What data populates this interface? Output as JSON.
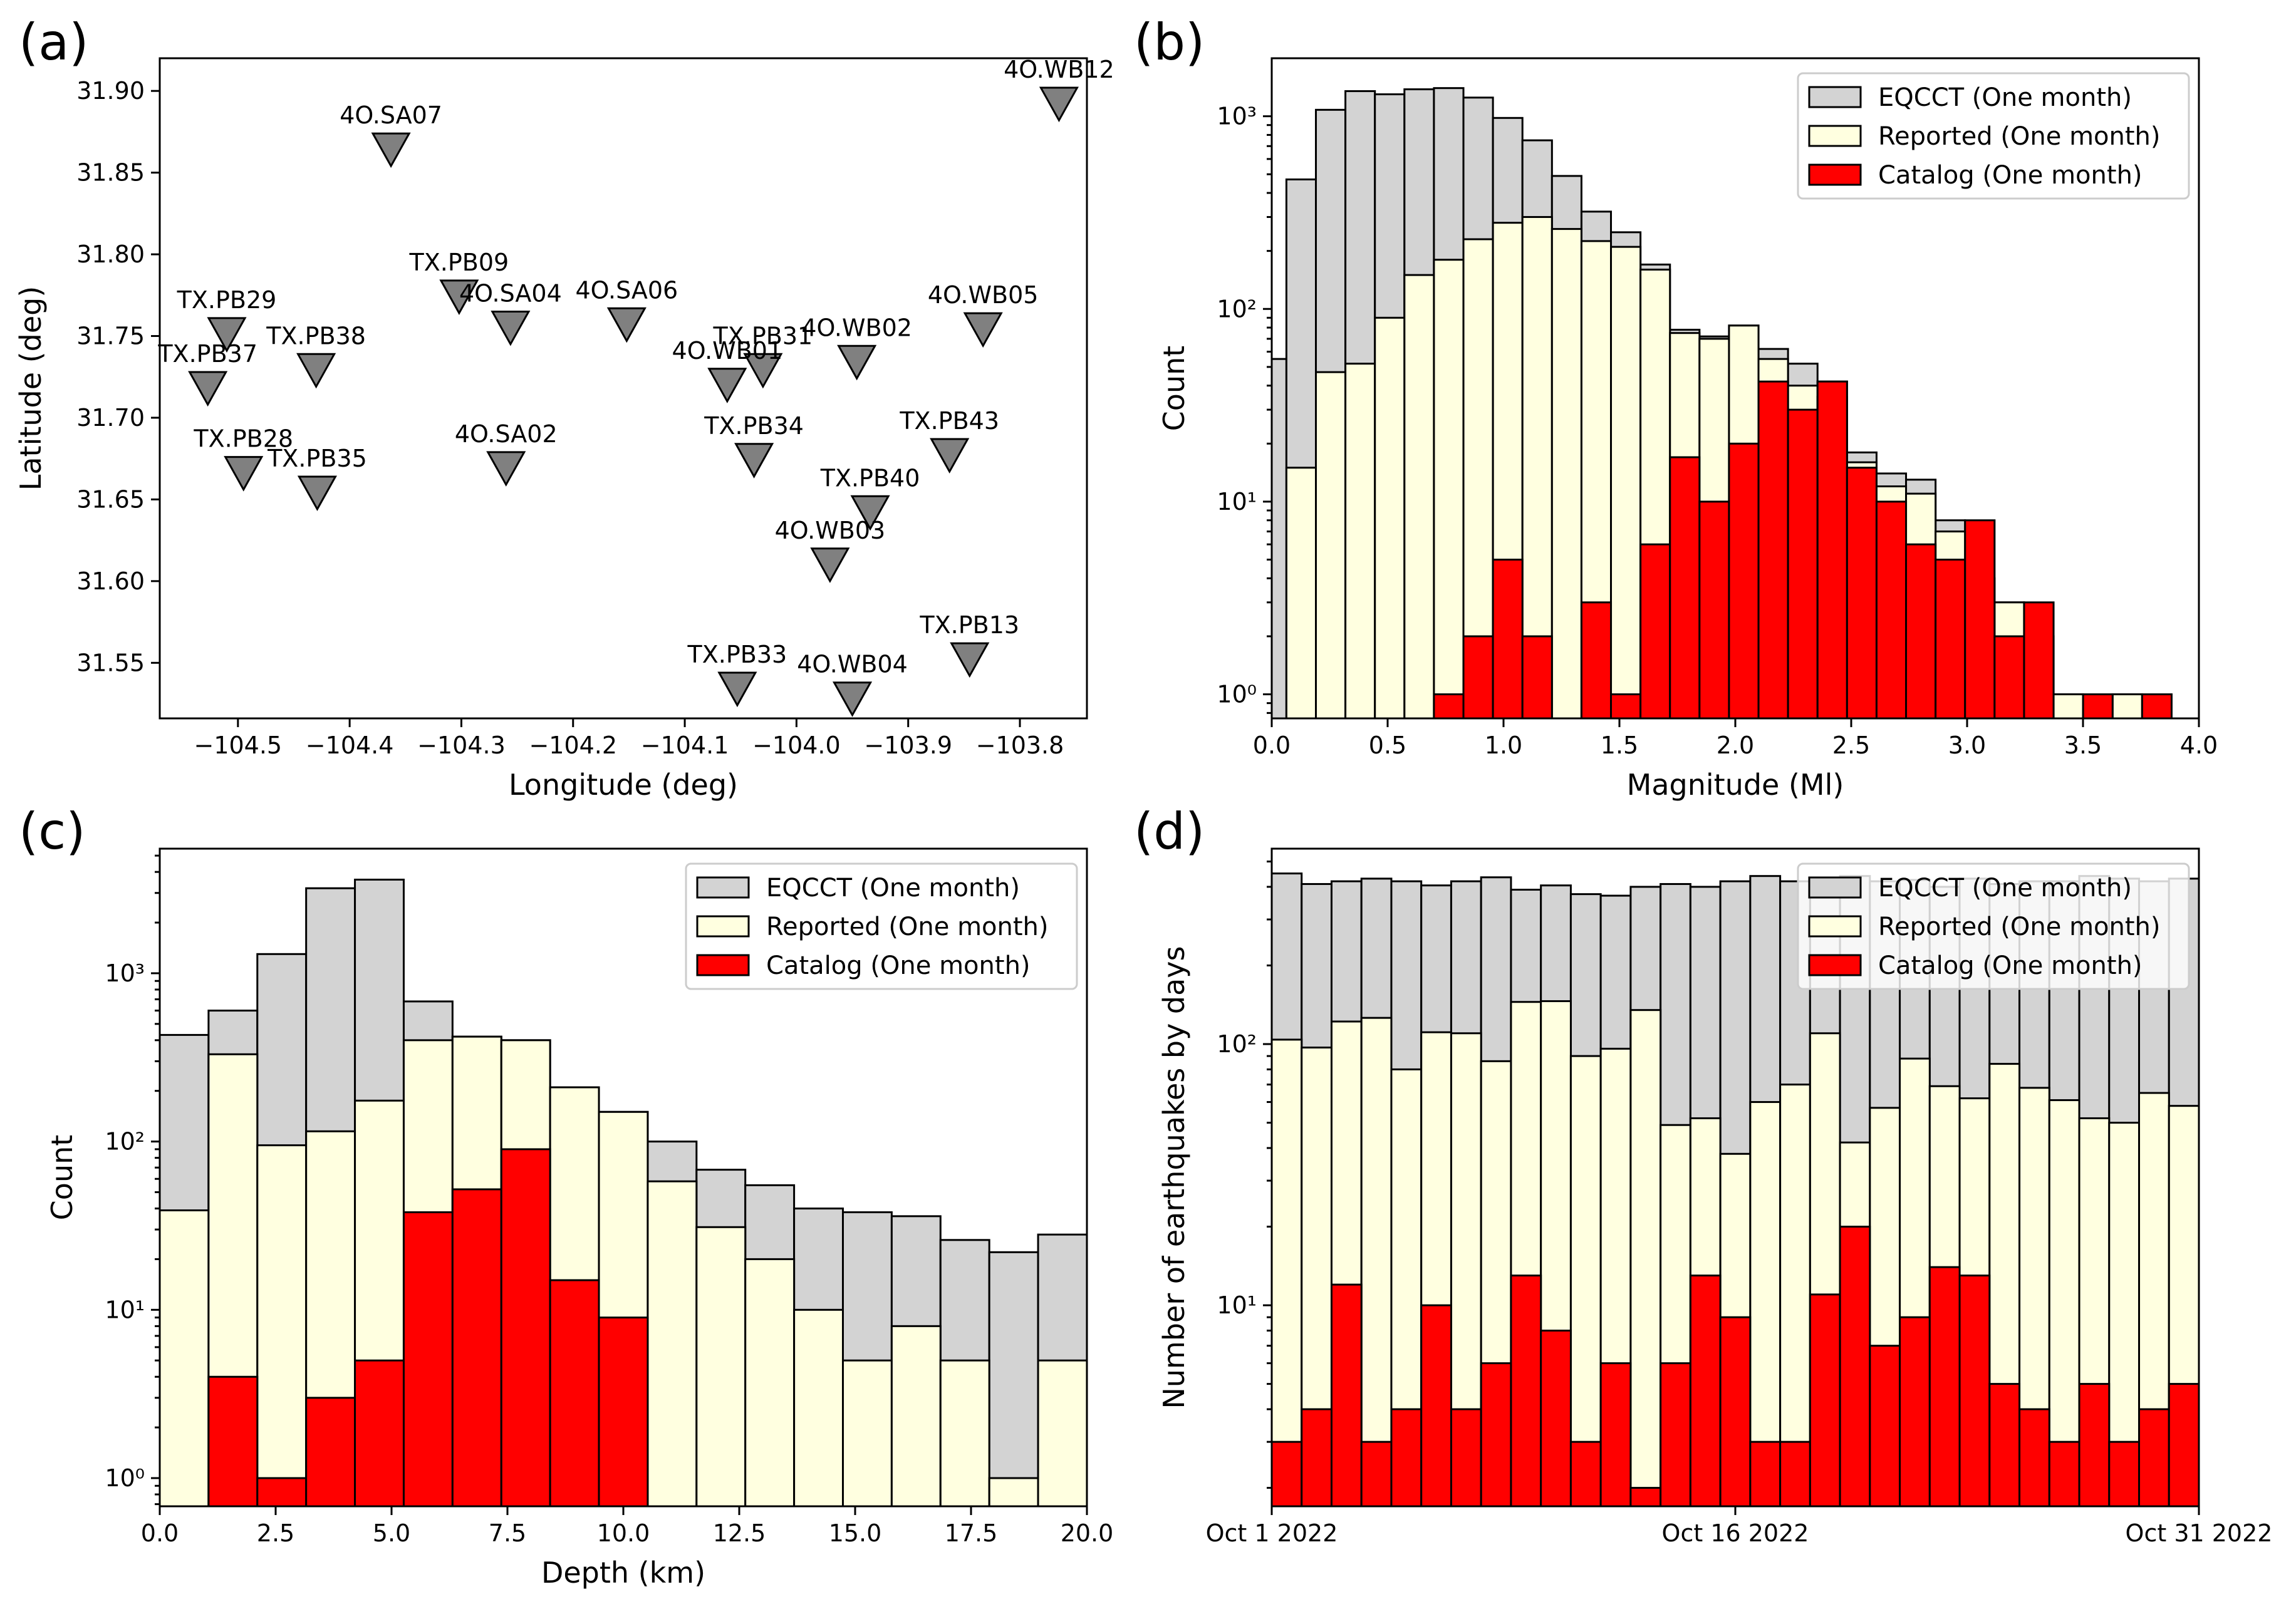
{
  "chart_data": [
    {
      "panel": "(a)",
      "type": "scatter",
      "marker": "inverted-triangle",
      "marker_color": "#808080",
      "xlabel": "Longitude (deg)",
      "ylabel": "Latitude (deg)",
      "xlim": [
        -104.57,
        -103.74
      ],
      "ylim": [
        31.516,
        31.92
      ],
      "xticks": [
        -104.5,
        -104.4,
        -104.3,
        -104.2,
        -104.1,
        -104.0,
        -103.9,
        -103.8
      ],
      "xtick_labels": [
        "−104.5",
        "−104.4",
        "−104.3",
        "−104.2",
        "−104.1",
        "−104.0",
        "−103.9",
        "−103.8"
      ],
      "yticks": [
        31.55,
        31.6,
        31.65,
        31.7,
        31.75,
        31.8,
        31.85,
        31.9
      ],
      "ytick_labels": [
        "31.55",
        "31.60",
        "31.65",
        "31.70",
        "31.75",
        "31.80",
        "31.85",
        "31.90"
      ],
      "points": [
        {
          "name": "4O.WB12",
          "lon": -103.765,
          "lat": 31.892
        },
        {
          "name": "4O.SA07",
          "lon": -104.363,
          "lat": 31.864
        },
        {
          "name": "TX.PB09",
          "lon": -104.302,
          "lat": 31.774
        },
        {
          "name": "4O.SA04",
          "lon": -104.256,
          "lat": 31.755
        },
        {
          "name": "4O.SA06",
          "lon": -104.152,
          "lat": 31.757
        },
        {
          "name": "TX.PB29",
          "lon": -104.51,
          "lat": 31.751
        },
        {
          "name": "4O.WB05",
          "lon": -103.833,
          "lat": 31.754
        },
        {
          "name": "TX.PB38",
          "lon": -104.43,
          "lat": 31.729
        },
        {
          "name": "4O.WB02",
          "lon": -103.946,
          "lat": 31.734
        },
        {
          "name": "TX.PB31",
          "lon": -104.03,
          "lat": 31.729
        },
        {
          "name": "TX.PB37",
          "lon": -104.527,
          "lat": 31.718
        },
        {
          "name": "4O.WB01",
          "lon": -104.062,
          "lat": 31.72
        },
        {
          "name": "TX.PB34",
          "lon": -104.038,
          "lat": 31.674
        },
        {
          "name": "TX.PB43",
          "lon": -103.863,
          "lat": 31.677
        },
        {
          "name": "TX.PB28",
          "lon": -104.495,
          "lat": 31.666
        },
        {
          "name": "4O.SA02",
          "lon": -104.26,
          "lat": 31.669
        },
        {
          "name": "TX.PB35",
          "lon": -104.429,
          "lat": 31.654
        },
        {
          "name": "TX.PB40",
          "lon": -103.934,
          "lat": 31.642
        },
        {
          "name": "4O.WB03",
          "lon": -103.97,
          "lat": 31.61
        },
        {
          "name": "TX.PB13",
          "lon": -103.845,
          "lat": 31.552
        },
        {
          "name": "TX.PB33",
          "lon": -104.053,
          "lat": 31.534
        },
        {
          "name": "4O.WB04",
          "lon": -103.95,
          "lat": 31.528
        }
      ]
    },
    {
      "panel": "(b)",
      "type": "bar",
      "yscale": "log",
      "xlabel": "Magnitude (Ml)",
      "ylabel": "Count",
      "xlim": [
        0,
        4.0
      ],
      "ylim": [
        0.75,
        2000
      ],
      "bin_start": -0.064,
      "bin_width": 0.1273,
      "xticks": [
        0.0,
        0.5,
        1.0,
        1.5,
        2.0,
        2.5,
        3.0,
        3.5,
        4.0
      ],
      "xtick_labels": [
        "0.0",
        "0.5",
        "1.0",
        "1.5",
        "2.0",
        "2.5",
        "3.0",
        "3.5",
        "4.0"
      ],
      "yticks": [
        1,
        10,
        100,
        1000
      ],
      "ytick_labels": [
        "10⁰",
        "10¹",
        "10²",
        "10³"
      ],
      "legend": [
        "EQCCT (One month)",
        "Reported (One month)",
        "Catalog (One month)"
      ],
      "legend_placement": "top-right",
      "series": [
        {
          "name": "EQCCT (One month)",
          "color": "#d3d3d3",
          "values": [
            55,
            470,
            1080,
            1350,
            1300,
            1380,
            1400,
            1250,
            980,
            750,
            490,
            320,
            250,
            170,
            78,
            72,
            82,
            62,
            52,
            42,
            18,
            14,
            13,
            8,
            4,
            3,
            2,
            1,
            0,
            1
          ]
        },
        {
          "name": "Reported (One month)",
          "color": "#ffffe0",
          "values": [
            0,
            15,
            47,
            52,
            90,
            150,
            180,
            230,
            280,
            300,
            260,
            225,
            210,
            160,
            75,
            70,
            82,
            55,
            40,
            35,
            16,
            12,
            11,
            7,
            3,
            3,
            2,
            1,
            0,
            1
          ]
        },
        {
          "name": "Catalog (One month)",
          "color": "#ff0000",
          "values": [
            0,
            0,
            0,
            0,
            0,
            0,
            1,
            2,
            5,
            2,
            0,
            3,
            1,
            6,
            17,
            10,
            20,
            42,
            30,
            42,
            15,
            10,
            6,
            5,
            8,
            2,
            3,
            0,
            1,
            0,
            1
          ]
        }
      ]
    },
    {
      "panel": "(c)",
      "type": "bar",
      "yscale": "log",
      "xlabel": "Depth (km)",
      "ylabel": "Count",
      "xlim": [
        0,
        20.0
      ],
      "ylim": [
        0.68,
        5500
      ],
      "bin_start": 0,
      "bin_width": 1.0526,
      "xticks": [
        0.0,
        2.5,
        5.0,
        7.5,
        10.0,
        12.5,
        15.0,
        17.5,
        20.0
      ],
      "xtick_labels": [
        "0.0",
        "2.5",
        "5.0",
        "7.5",
        "10.0",
        "12.5",
        "15.0",
        "17.5",
        "20.0"
      ],
      "yticks": [
        1,
        10,
        100,
        1000
      ],
      "ytick_labels": [
        "10⁰",
        "10¹",
        "10²",
        "10³"
      ],
      "legend": [
        "EQCCT (One month)",
        "Reported (One month)",
        "Catalog (One month)"
      ],
      "legend_placement": "top-right",
      "series": [
        {
          "name": "EQCCT (One month)",
          "color": "#d3d3d3",
          "values": [
            430,
            600,
            1300,
            3200,
            3600,
            680,
            420,
            400,
            210,
            150,
            100,
            68,
            55,
            40,
            38,
            36,
            26,
            22,
            28
          ]
        },
        {
          "name": "Reported (One month)",
          "color": "#ffffe0",
          "values": [
            39,
            330,
            95,
            115,
            175,
            400,
            420,
            400,
            210,
            150,
            58,
            31,
            20,
            10,
            5,
            8,
            5,
            1,
            5
          ]
        },
        {
          "name": "Catalog (One month)",
          "color": "#ff0000",
          "values": [
            0,
            4,
            1,
            3,
            5,
            38,
            52,
            90,
            15,
            9,
            0,
            0,
            0,
            0,
            0,
            0,
            0,
            0,
            0
          ]
        }
      ]
    },
    {
      "panel": "(d)",
      "type": "bar",
      "yscale": "log",
      "xlabel": "",
      "ylabel": "Number of earthquakes by days",
      "ylim": [
        1.7,
        560
      ],
      "days": 31,
      "xtick_labels": [
        "Oct 1 2022",
        "Oct 16 2022",
        "Oct 31 2022"
      ],
      "xtick_days": [
        0,
        15,
        30
      ],
      "yticks": [
        10,
        100
      ],
      "ytick_labels": [
        "10¹",
        "10²"
      ],
      "legend": [
        "EQCCT (One month)",
        "Reported (One month)",
        "Catalog (One month)"
      ],
      "legend_placement": "top-right",
      "series": [
        {
          "name": "EQCCT (One month)",
          "color": "#d3d3d3",
          "values": [
            450,
            410,
            420,
            430,
            420,
            405,
            420,
            435,
            390,
            405,
            375,
            370,
            400,
            410,
            400,
            420,
            440,
            420,
            430,
            440,
            420,
            425,
            400,
            430,
            410,
            420,
            420,
            440,
            430,
            420,
            430
          ]
        },
        {
          "name": "Reported (One month)",
          "color": "#ffffe0",
          "values": [
            104,
            97,
            122,
            126,
            80,
            111,
            110,
            86,
            145,
            146,
            90,
            96,
            135,
            49,
            52,
            38,
            60,
            70,
            110,
            42,
            57,
            88,
            69,
            62,
            84,
            68,
            61,
            52,
            50,
            65,
            58
          ]
        },
        {
          "name": "Catalog (One month)",
          "color": "#ff0000",
          "values": [
            3,
            4,
            12,
            3,
            4,
            10,
            4,
            6,
            13,
            8,
            3,
            6,
            2,
            6,
            13,
            9,
            3,
            3,
            11,
            20,
            7,
            9,
            14,
            13,
            5,
            4,
            3,
            5,
            3,
            4,
            5
          ]
        }
      ]
    }
  ]
}
